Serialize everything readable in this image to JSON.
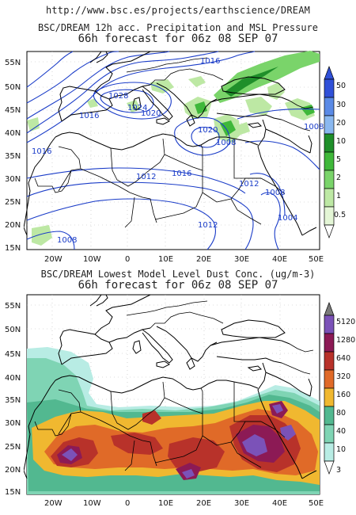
{
  "header": {
    "url": "http://www.bsc.es/projects/earthscience/DREAM"
  },
  "top_panel": {
    "title_line1": "BSC/DREAM 12h acc. Precipitation and MSL Pressure",
    "title_line2": "66h forecast for 06z 08 SEP 07",
    "lat_labels": [
      "55N",
      "50N",
      "45N",
      "40N",
      "35N",
      "30N",
      "25N",
      "20N",
      "15N"
    ],
    "lon_labels": [
      "20W",
      "10W",
      "0",
      "10E",
      "20E",
      "30E",
      "40E",
      "50E"
    ],
    "isobar_labels": [
      "1016",
      "1028",
      "1024",
      "1020",
      "1016",
      "1016",
      "1020",
      "1008",
      "1012",
      "1016",
      "1012",
      "1008",
      "1004",
      "1012",
      "1008",
      "1008"
    ],
    "colorbar": {
      "labels": [
        "50",
        "30",
        "20",
        "10",
        "5",
        "2",
        "1",
        "0.5"
      ],
      "colors": [
        "#3050d8",
        "#5a8ae6",
        "#8ab8f0",
        "#1f8f2a",
        "#3fb83a",
        "#7ad46a",
        "#bde8a4",
        "#e4f6d6"
      ]
    }
  },
  "bottom_panel": {
    "title_line1": "BSC/DREAM Lowest Model Level Dust Conc. (ug/m-3)",
    "title_line2": "66h forecast for 06z 08 SEP 07",
    "lat_labels": [
      "55N",
      "50N",
      "45N",
      "40N",
      "35N",
      "30N",
      "25N",
      "20N",
      "15N"
    ],
    "lon_labels": [
      "20W",
      "10W",
      "0",
      "10E",
      "20E",
      "30E",
      "40E",
      "50E"
    ],
    "colorbar": {
      "labels": [
        "5120",
        "1280",
        "640",
        "320",
        "160",
        "80",
        "40",
        "10",
        "3"
      ],
      "colors": [
        "#7a7a7a",
        "#7b52b8",
        "#8c1a55",
        "#b8322a",
        "#e06a28",
        "#f0b830",
        "#52b890",
        "#7fd4b4",
        "#b8ece4"
      ]
    }
  }
}
